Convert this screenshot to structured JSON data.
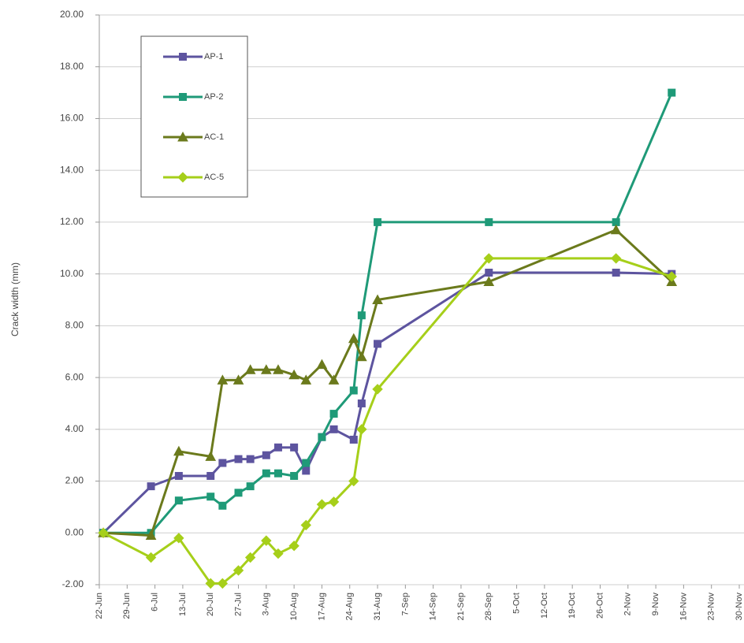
{
  "chart_data": {
    "type": "line",
    "y_label": "Crack width (mm)",
    "x": [
      "23-Jun",
      "5-Jul",
      "12-Jul",
      "20-Jul",
      "23-Jul",
      "27-Jul",
      "30-Jul",
      "3-Aug",
      "6-Aug",
      "10-Aug",
      "13-Aug",
      "17-Aug",
      "20-Aug",
      "25-Aug",
      "27-Aug",
      "31-Aug",
      "28-Sep",
      "30-Oct",
      "13-Nov"
    ],
    "series": [
      {
        "name": "AP-1",
        "color": "#5d549f",
        "marker": "square",
        "values": [
          0,
          1.8,
          2.2,
          2.2,
          2.7,
          2.85,
          2.85,
          3.0,
          3.3,
          3.3,
          2.4,
          3.7,
          4.0,
          3.6,
          5.0,
          7.3,
          10.05,
          10.05,
          10.0
        ]
      },
      {
        "name": "AP-2",
        "color": "#1f9a78",
        "marker": "square",
        "values": [
          0,
          0,
          1.25,
          1.4,
          1.05,
          1.55,
          1.8,
          2.3,
          2.3,
          2.2,
          2.7,
          3.7,
          4.6,
          5.5,
          8.4,
          12.0,
          12.0,
          12.0,
          17.0
        ]
      },
      {
        "name": "AC-1",
        "color": "#6b7a1c",
        "marker": "triangle",
        "values": [
          0,
          -0.1,
          3.15,
          2.95,
          5.9,
          5.9,
          6.3,
          6.3,
          6.3,
          6.1,
          5.9,
          6.5,
          5.9,
          7.5,
          6.8,
          9.0,
          9.7,
          11.7,
          9.7
        ]
      },
      {
        "name": "AC-5",
        "color": "#a6cf1a",
        "marker": "diamond",
        "values": [
          0,
          -0.95,
          -0.2,
          -1.95,
          -1.95,
          -1.45,
          -0.95,
          -0.3,
          -0.8,
          -0.5,
          0.3,
          1.1,
          1.2,
          2.0,
          4.0,
          5.55,
          10.6,
          10.6,
          9.9
        ]
      }
    ],
    "xlim": [
      "22-Jun",
      "30-Nov"
    ],
    "xticks": [
      "22-Jun",
      "29-Jun",
      "6-Jul",
      "13-Jul",
      "20-Jul",
      "27-Jul",
      "3-Aug",
      "10-Aug",
      "17-Aug",
      "24-Aug",
      "31-Aug",
      "7-Sep",
      "14-Sep",
      "21-Sep",
      "28-Sep",
      "5-Oct",
      "12-Oct",
      "19-Oct",
      "26-Oct",
      "2-Nov",
      "9-Nov",
      "16-Nov",
      "23-Nov",
      "30-Nov"
    ],
    "ylim": [
      -2,
      20
    ],
    "yticks": [
      {
        "value": -2,
        "label": "-2.00"
      },
      {
        "value": 0,
        "label": "0.00"
      },
      {
        "value": 2,
        "label": "2.00"
      },
      {
        "value": 4,
        "label": "4.00"
      },
      {
        "value": 6,
        "label": "6.00"
      },
      {
        "value": 8,
        "label": "8.00"
      },
      {
        "value": 10,
        "label": "10.00"
      },
      {
        "value": 12,
        "label": "12.00"
      },
      {
        "value": 14,
        "label": "14.00"
      },
      {
        "value": 16,
        "label": "16.00"
      },
      {
        "value": 18,
        "label": "18.00"
      },
      {
        "value": 20,
        "label": "20.00"
      }
    ],
    "grid": true,
    "legend": "upper left"
  }
}
